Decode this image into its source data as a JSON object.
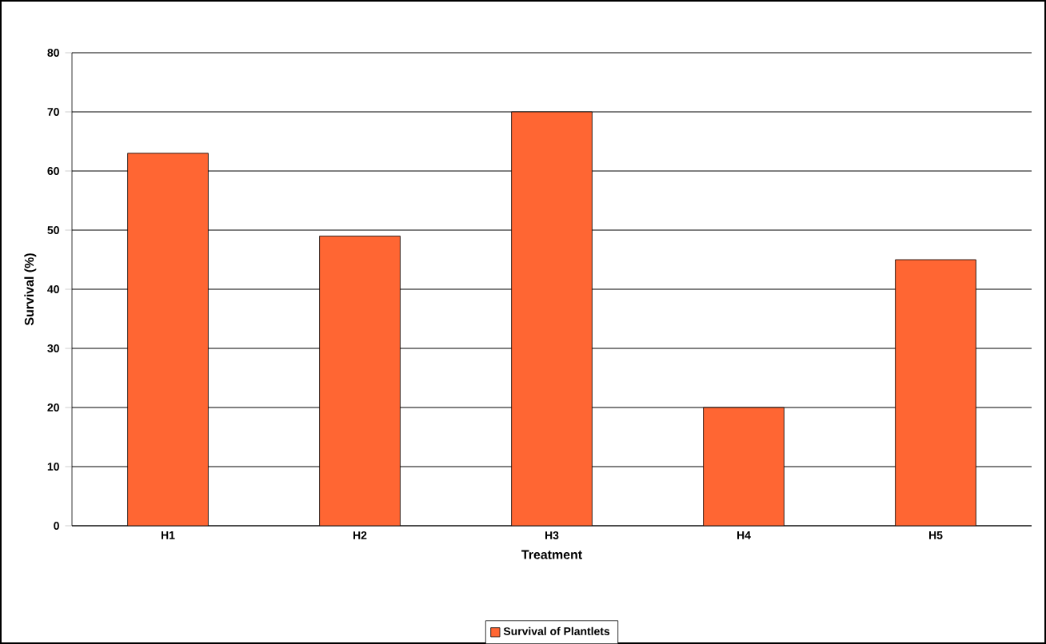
{
  "chart_data": {
    "type": "bar",
    "xlabel": "Treatment",
    "ylabel": "Survival (%)",
    "categories": [
      "H1",
      "H2",
      "H3",
      "H4",
      "H5"
    ],
    "series": [
      {
        "name": "Survival of Plantlets",
        "color": "#ff6633",
        "values": [
          63,
          49,
          70,
          20,
          45
        ]
      }
    ],
    "ylim": [
      0,
      80
    ],
    "yticks": [
      0,
      10,
      20,
      30,
      40,
      50,
      60,
      70,
      80
    ],
    "grid": "y",
    "legend": "bottom"
  }
}
